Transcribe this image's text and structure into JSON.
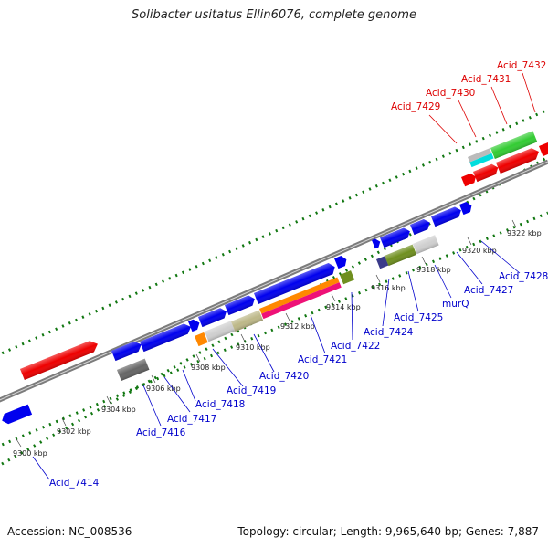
{
  "title": "Solibacter usitatus Ellin6076, complete genome",
  "footer": {
    "accession": "Accession: NC_008536",
    "topology": "Topology: circular; Length: 9,965,640 bp; Genes: 7,887"
  },
  "colors": {
    "label_blue": "#0000cc",
    "label_red": "#dd0000",
    "tick_green": "#117711",
    "backbone": "#8a8a8a"
  },
  "scale_ticks": [
    "9300 kbp",
    "9302 kbp",
    "9304 kbp",
    "9306 kbp",
    "9308 kbp",
    "9310 kbp",
    "9312 kbp",
    "9314 kbp",
    "9316 kbp",
    "9318 kbp",
    "9320 kbp",
    "9322 kbp"
  ],
  "labels": [
    {
      "text": "Acid_7414",
      "color": "blue"
    },
    {
      "text": "Acid_7416",
      "color": "blue"
    },
    {
      "text": "Acid_7417",
      "color": "blue"
    },
    {
      "text": "Acid_7418",
      "color": "blue"
    },
    {
      "text": "Acid_7419",
      "color": "blue"
    },
    {
      "text": "Acid_7420",
      "color": "blue"
    },
    {
      "text": "Acid_7421",
      "color": "blue"
    },
    {
      "text": "Acid_7422",
      "color": "blue"
    },
    {
      "text": "Acid_7424",
      "color": "blue"
    },
    {
      "text": "Acid_7425",
      "color": "blue"
    },
    {
      "text": "murQ",
      "color": "blue"
    },
    {
      "text": "Acid_7427",
      "color": "blue"
    },
    {
      "text": "Acid_7428",
      "color": "blue"
    },
    {
      "text": "Acid_7429",
      "color": "red"
    },
    {
      "text": "Acid_7430",
      "color": "red"
    },
    {
      "text": "Acid_7431",
      "color": "red"
    },
    {
      "text": "Acid_7432",
      "color": "red"
    }
  ]
}
